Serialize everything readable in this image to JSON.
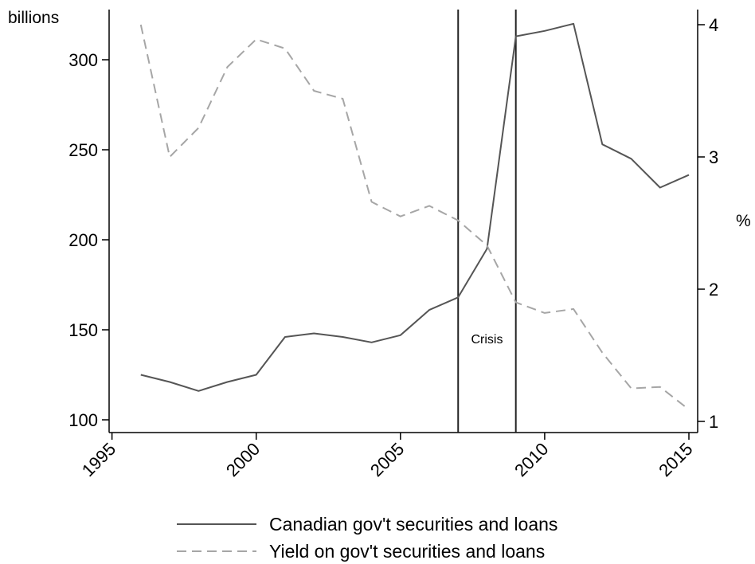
{
  "chart_data": {
    "type": "line",
    "title": "",
    "xlabel": "",
    "ylabel_left": "billions",
    "ylabel_right": "%",
    "x": [
      1996,
      1997,
      1998,
      1999,
      2000,
      2001,
      2002,
      2003,
      2004,
      2005,
      2006,
      2007,
      2008,
      2009,
      2010,
      2011,
      2012,
      2013,
      2014,
      2015
    ],
    "xlim": [
      1994.9,
      2015
    ],
    "ylim_left": [
      95,
      327
    ],
    "ylim_right": [
      0.96,
      4.1
    ],
    "x_ticks": [
      "1995",
      "2000",
      "2005",
      "2010",
      "2015"
    ],
    "x_tick_values": [
      1995,
      2000,
      2005,
      2010,
      2015
    ],
    "y_left_ticks": [
      "100",
      "150",
      "200",
      "250",
      "300"
    ],
    "y_left_tick_values": [
      100,
      150,
      200,
      250,
      300
    ],
    "y_right_ticks": [
      "1",
      "2",
      "3",
      "4"
    ],
    "y_right_tick_values": [
      1,
      2,
      3,
      4
    ],
    "grid": false,
    "legend_position": "bottom",
    "series": [
      {
        "name": "Canadian gov't securities and loans",
        "axis": "left",
        "color": "#555555",
        "dash": "solid",
        "values": [
          125,
          121,
          116,
          121,
          125,
          146,
          148,
          146,
          143,
          147,
          161,
          168,
          195,
          313,
          316,
          320,
          253,
          245,
          229,
          236
        ]
      },
      {
        "name": "Yield on gov't securities and loans",
        "axis": "right",
        "color": "#a6a6a6",
        "dash": "dashed",
        "values": [
          4.0,
          3.0,
          3.22,
          3.68,
          3.89,
          3.82,
          3.5,
          3.44,
          2.66,
          2.55,
          2.63,
          2.52,
          2.33,
          1.9,
          1.82,
          1.85,
          1.52,
          1.25,
          1.26,
          1.09
        ]
      }
    ],
    "vlines": [
      2007,
      2009
    ],
    "annotations": [
      {
        "text": "Crisis",
        "x": 2008
      }
    ]
  }
}
